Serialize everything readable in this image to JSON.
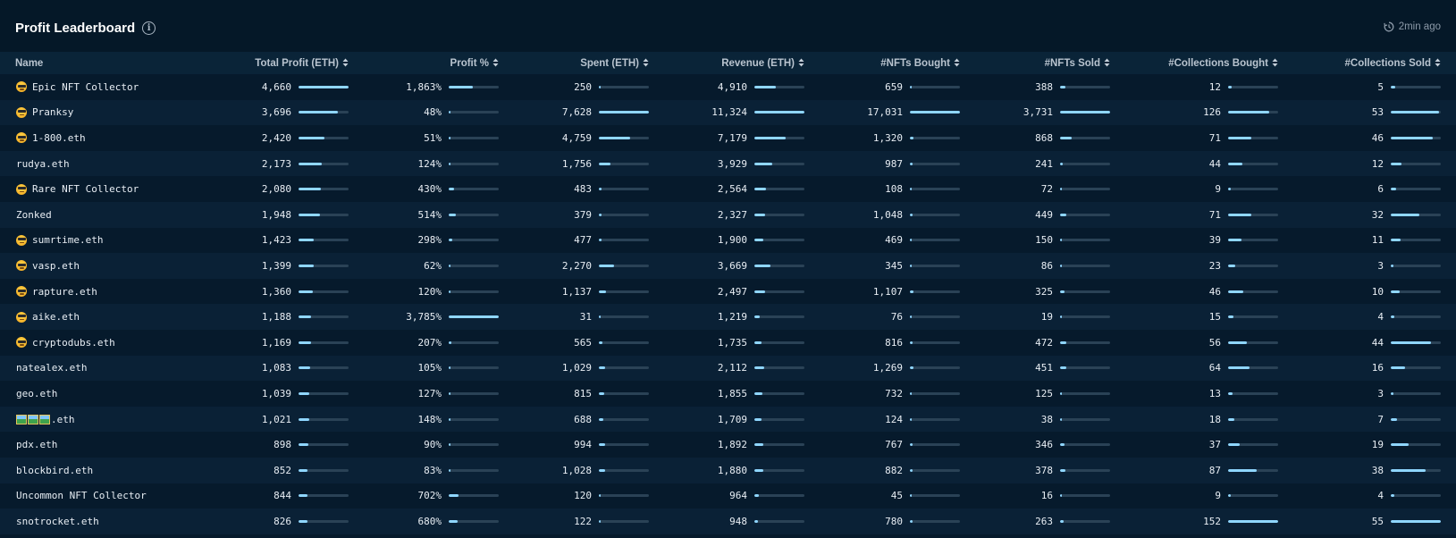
{
  "header": {
    "title": "Profit Leaderboard",
    "info_icon": "info-icon",
    "updated": "2min ago",
    "clock_icon": "clock-icon"
  },
  "colors": {
    "background": "#061a2c",
    "header_row": "#0a2438",
    "bar_track": "#2a4256",
    "bar_fill": "#8fd6ff"
  },
  "columns": [
    {
      "key": "name",
      "label": "Name",
      "sortable": false
    },
    {
      "key": "total_profit",
      "label": "Total Profit (ETH)",
      "sortable": true
    },
    {
      "key": "profit_pct",
      "label": "Profit %",
      "sortable": true
    },
    {
      "key": "spent",
      "label": "Spent (ETH)",
      "sortable": true
    },
    {
      "key": "revenue",
      "label": "Revenue (ETH)",
      "sortable": true
    },
    {
      "key": "nfts_bought",
      "label": "#NFTs Bought",
      "sortable": true
    },
    {
      "key": "nfts_sold",
      "label": "#NFTs Sold",
      "sortable": true
    },
    {
      "key": "collections_bought",
      "label": "#Collections Bought",
      "sortable": true
    },
    {
      "key": "collections_sold",
      "label": "#Collections Sold",
      "sortable": true
    }
  ],
  "rows": [
    {
      "name": "Epic NFT Collector",
      "badge": "sunglasses-emoji",
      "total_profit": "4,660",
      "profit_pct": "1,863%",
      "spent": "250",
      "revenue": "4,910",
      "nfts_bought": "659",
      "nfts_sold": "388",
      "collections_bought": "12",
      "collections_sold": "5",
      "bars": {
        "total_profit": 1.0,
        "profit_pct": 0.49,
        "spent": 0.03,
        "revenue": 0.43,
        "nfts_bought": 0.04,
        "nfts_sold": 0.1,
        "collections_bought": 0.08,
        "collections_sold": 0.09
      }
    },
    {
      "name": "Pranksy",
      "badge": "sunglasses-emoji",
      "total_profit": "3,696",
      "profit_pct": "48%",
      "spent": "7,628",
      "revenue": "11,324",
      "nfts_bought": "17,031",
      "nfts_sold": "3,731",
      "collections_bought": "126",
      "collections_sold": "53",
      "bars": {
        "total_profit": 0.79,
        "profit_pct": 0.01,
        "spent": 1.0,
        "revenue": 1.0,
        "nfts_bought": 1.0,
        "nfts_sold": 1.0,
        "collections_bought": 0.83,
        "collections_sold": 0.96
      }
    },
    {
      "name": "1-800.eth",
      "badge": "sunglasses-emoji",
      "total_profit": "2,420",
      "profit_pct": "51%",
      "spent": "4,759",
      "revenue": "7,179",
      "nfts_bought": "1,320",
      "nfts_sold": "868",
      "collections_bought": "71",
      "collections_sold": "46",
      "bars": {
        "total_profit": 0.52,
        "profit_pct": 0.01,
        "spent": 0.62,
        "revenue": 0.63,
        "nfts_bought": 0.08,
        "nfts_sold": 0.23,
        "collections_bought": 0.47,
        "collections_sold": 0.84
      }
    },
    {
      "name": "rudya.eth",
      "badge": "",
      "total_profit": "2,173",
      "profit_pct": "124%",
      "spent": "1,756",
      "revenue": "3,929",
      "nfts_bought": "987",
      "nfts_sold": "241",
      "collections_bought": "44",
      "collections_sold": "12",
      "bars": {
        "total_profit": 0.47,
        "profit_pct": 0.03,
        "spent": 0.23,
        "revenue": 0.35,
        "nfts_bought": 0.06,
        "nfts_sold": 0.06,
        "collections_bought": 0.29,
        "collections_sold": 0.22
      }
    },
    {
      "name": "Rare NFT Collector",
      "badge": "sunglasses-emoji",
      "total_profit": "2,080",
      "profit_pct": "430%",
      "spent": "483",
      "revenue": "2,564",
      "nfts_bought": "108",
      "nfts_sold": "72",
      "collections_bought": "9",
      "collections_sold": "6",
      "bars": {
        "total_profit": 0.45,
        "profit_pct": 0.11,
        "spent": 0.06,
        "revenue": 0.23,
        "nfts_bought": 0.01,
        "nfts_sold": 0.02,
        "collections_bought": 0.06,
        "collections_sold": 0.11
      }
    },
    {
      "name": "Zonked",
      "badge": "",
      "total_profit": "1,948",
      "profit_pct": "514%",
      "spent": "379",
      "revenue": "2,327",
      "nfts_bought": "1,048",
      "nfts_sold": "449",
      "collections_bought": "71",
      "collections_sold": "32",
      "bars": {
        "total_profit": 0.42,
        "profit_pct": 0.14,
        "spent": 0.05,
        "revenue": 0.21,
        "nfts_bought": 0.06,
        "nfts_sold": 0.12,
        "collections_bought": 0.47,
        "collections_sold": 0.58
      }
    },
    {
      "name": "sumrtime.eth",
      "badge": "sunglasses-emoji",
      "total_profit": "1,423",
      "profit_pct": "298%",
      "spent": "477",
      "revenue": "1,900",
      "nfts_bought": "469",
      "nfts_sold": "150",
      "collections_bought": "39",
      "collections_sold": "11",
      "bars": {
        "total_profit": 0.31,
        "profit_pct": 0.08,
        "spent": 0.06,
        "revenue": 0.17,
        "nfts_bought": 0.03,
        "nfts_sold": 0.04,
        "collections_bought": 0.26,
        "collections_sold": 0.2
      }
    },
    {
      "name": "vasp.eth",
      "badge": "sunglasses-emoji",
      "total_profit": "1,399",
      "profit_pct": "62%",
      "spent": "2,270",
      "revenue": "3,669",
      "nfts_bought": "345",
      "nfts_sold": "86",
      "collections_bought": "23",
      "collections_sold": "3",
      "bars": {
        "total_profit": 0.3,
        "profit_pct": 0.02,
        "spent": 0.3,
        "revenue": 0.32,
        "nfts_bought": 0.02,
        "nfts_sold": 0.02,
        "collections_bought": 0.15,
        "collections_sold": 0.05
      }
    },
    {
      "name": "rapture.eth",
      "badge": "sunglasses-emoji",
      "total_profit": "1,360",
      "profit_pct": "120%",
      "spent": "1,137",
      "revenue": "2,497",
      "nfts_bought": "1,107",
      "nfts_sold": "325",
      "collections_bought": "46",
      "collections_sold": "10",
      "bars": {
        "total_profit": 0.29,
        "profit_pct": 0.03,
        "spent": 0.15,
        "revenue": 0.22,
        "nfts_bought": 0.07,
        "nfts_sold": 0.09,
        "collections_bought": 0.3,
        "collections_sold": 0.18
      }
    },
    {
      "name": "aike.eth",
      "badge": "sunglasses-emoji",
      "total_profit": "1,188",
      "profit_pct": "3,785%",
      "spent": "31",
      "revenue": "1,219",
      "nfts_bought": "76",
      "nfts_sold": "19",
      "collections_bought": "15",
      "collections_sold": "4",
      "bars": {
        "total_profit": 0.25,
        "profit_pct": 1.0,
        "spent": 0.004,
        "revenue": 0.11,
        "nfts_bought": 0.004,
        "nfts_sold": 0.005,
        "collections_bought": 0.1,
        "collections_sold": 0.07
      }
    },
    {
      "name": "cryptodubs.eth",
      "badge": "sunglasses-emoji",
      "total_profit": "1,169",
      "profit_pct": "207%",
      "spent": "565",
      "revenue": "1,735",
      "nfts_bought": "816",
      "nfts_sold": "472",
      "collections_bought": "56",
      "collections_sold": "44",
      "bars": {
        "total_profit": 0.25,
        "profit_pct": 0.05,
        "spent": 0.07,
        "revenue": 0.15,
        "nfts_bought": 0.05,
        "nfts_sold": 0.13,
        "collections_bought": 0.37,
        "collections_sold": 0.8
      }
    },
    {
      "name": "natealex.eth",
      "badge": "",
      "total_profit": "1,083",
      "profit_pct": "105%",
      "spent": "1,029",
      "revenue": "2,112",
      "nfts_bought": "1,269",
      "nfts_sold": "451",
      "collections_bought": "64",
      "collections_sold": "16",
      "bars": {
        "total_profit": 0.23,
        "profit_pct": 0.03,
        "spent": 0.13,
        "revenue": 0.19,
        "nfts_bought": 0.07,
        "nfts_sold": 0.12,
        "collections_bought": 0.42,
        "collections_sold": 0.29
      }
    },
    {
      "name": "geo.eth",
      "badge": "",
      "total_profit": "1,039",
      "profit_pct": "127%",
      "spent": "815",
      "revenue": "1,855",
      "nfts_bought": "732",
      "nfts_sold": "125",
      "collections_bought": "13",
      "collections_sold": "3",
      "bars": {
        "total_profit": 0.22,
        "profit_pct": 0.03,
        "spent": 0.11,
        "revenue": 0.16,
        "nfts_bought": 0.04,
        "nfts_sold": 0.03,
        "collections_bought": 0.09,
        "collections_sold": 0.05
      }
    },
    {
      "name": ".eth",
      "badge": "picture-icons",
      "total_profit": "1,021",
      "profit_pct": "148%",
      "spent": "688",
      "revenue": "1,709",
      "nfts_bought": "124",
      "nfts_sold": "38",
      "collections_bought": "18",
      "collections_sold": "7",
      "bars": {
        "total_profit": 0.22,
        "profit_pct": 0.04,
        "spent": 0.09,
        "revenue": 0.15,
        "nfts_bought": 0.01,
        "nfts_sold": 0.01,
        "collections_bought": 0.12,
        "collections_sold": 0.13
      }
    },
    {
      "name": "pdx.eth",
      "badge": "",
      "total_profit": "898",
      "profit_pct": "90%",
      "spent": "994",
      "revenue": "1,892",
      "nfts_bought": "767",
      "nfts_sold": "346",
      "collections_bought": "37",
      "collections_sold": "19",
      "bars": {
        "total_profit": 0.19,
        "profit_pct": 0.02,
        "spent": 0.13,
        "revenue": 0.17,
        "nfts_bought": 0.05,
        "nfts_sold": 0.09,
        "collections_bought": 0.24,
        "collections_sold": 0.35
      }
    },
    {
      "name": "blockbird.eth",
      "badge": "",
      "total_profit": "852",
      "profit_pct": "83%",
      "spent": "1,028",
      "revenue": "1,880",
      "nfts_bought": "882",
      "nfts_sold": "378",
      "collections_bought": "87",
      "collections_sold": "38",
      "bars": {
        "total_profit": 0.18,
        "profit_pct": 0.02,
        "spent": 0.13,
        "revenue": 0.17,
        "nfts_bought": 0.05,
        "nfts_sold": 0.1,
        "collections_bought": 0.57,
        "collections_sold": 0.69
      }
    },
    {
      "name": "Uncommon NFT Collector",
      "badge": "",
      "total_profit": "844",
      "profit_pct": "702%",
      "spent": "120",
      "revenue": "964",
      "nfts_bought": "45",
      "nfts_sold": "16",
      "collections_bought": "9",
      "collections_sold": "4",
      "bars": {
        "total_profit": 0.18,
        "profit_pct": 0.19,
        "spent": 0.02,
        "revenue": 0.09,
        "nfts_bought": 0.003,
        "nfts_sold": 0.004,
        "collections_bought": 0.06,
        "collections_sold": 0.07
      }
    },
    {
      "name": "snotrocket.eth",
      "badge": "",
      "total_profit": "826",
      "profit_pct": "680%",
      "spent": "122",
      "revenue": "948",
      "nfts_bought": "780",
      "nfts_sold": "263",
      "collections_bought": "152",
      "collections_sold": "55",
      "bars": {
        "total_profit": 0.18,
        "profit_pct": 0.18,
        "spent": 0.02,
        "revenue": 0.08,
        "nfts_bought": 0.05,
        "nfts_sold": 0.07,
        "collections_bought": 1.0,
        "collections_sold": 1.0
      }
    }
  ]
}
